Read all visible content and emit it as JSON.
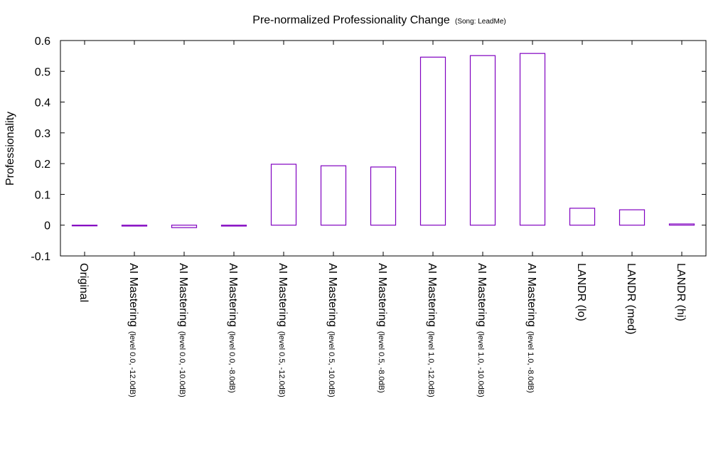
{
  "chart_data": {
    "type": "bar",
    "title": "Pre-normalized Professionality Change",
    "subtitle": "(Song: LeadMe)",
    "xlabel": "",
    "ylabel": "Professionality",
    "ylim": [
      -0.1,
      0.6
    ],
    "yticks": [
      "-0.1",
      "0",
      "0.1",
      "0.2",
      "0.3",
      "0.4",
      "0.5",
      "0.6"
    ],
    "grid": false,
    "bar_color": "#8000c0",
    "categories": [
      {
        "label": "Original",
        "sub": ""
      },
      {
        "label": "AI Mastering",
        "sub": "(level 0.0, -12.0dB)"
      },
      {
        "label": "AI Mastering",
        "sub": "(level 0.0, -10.0dB)"
      },
      {
        "label": "AI Mastering",
        "sub": "(level 0.0, -8.0dB)"
      },
      {
        "label": "AI Mastering",
        "sub": "(level 0.5, -12.0dB)"
      },
      {
        "label": "AI Mastering",
        "sub": "(level 0.5, -10.0dB)"
      },
      {
        "label": "AI Mastering",
        "sub": "(level 0.5, -8.0dB)"
      },
      {
        "label": "AI Mastering",
        "sub": "(level 1.0, -12.0dB)"
      },
      {
        "label": "AI Mastering",
        "sub": "(level 1.0, -10.0dB)"
      },
      {
        "label": "AI Mastering",
        "sub": "(level 1.0, -8.0dB)"
      },
      {
        "label": "LANDR (lo)",
        "sub": ""
      },
      {
        "label": "LANDR (med)",
        "sub": ""
      },
      {
        "label": "LANDR (hi)",
        "sub": ""
      }
    ],
    "values": [
      0.0,
      -0.003,
      -0.008,
      -0.003,
      0.198,
      0.193,
      0.189,
      0.546,
      0.551,
      0.558,
      0.055,
      0.05,
      0.004
    ]
  }
}
